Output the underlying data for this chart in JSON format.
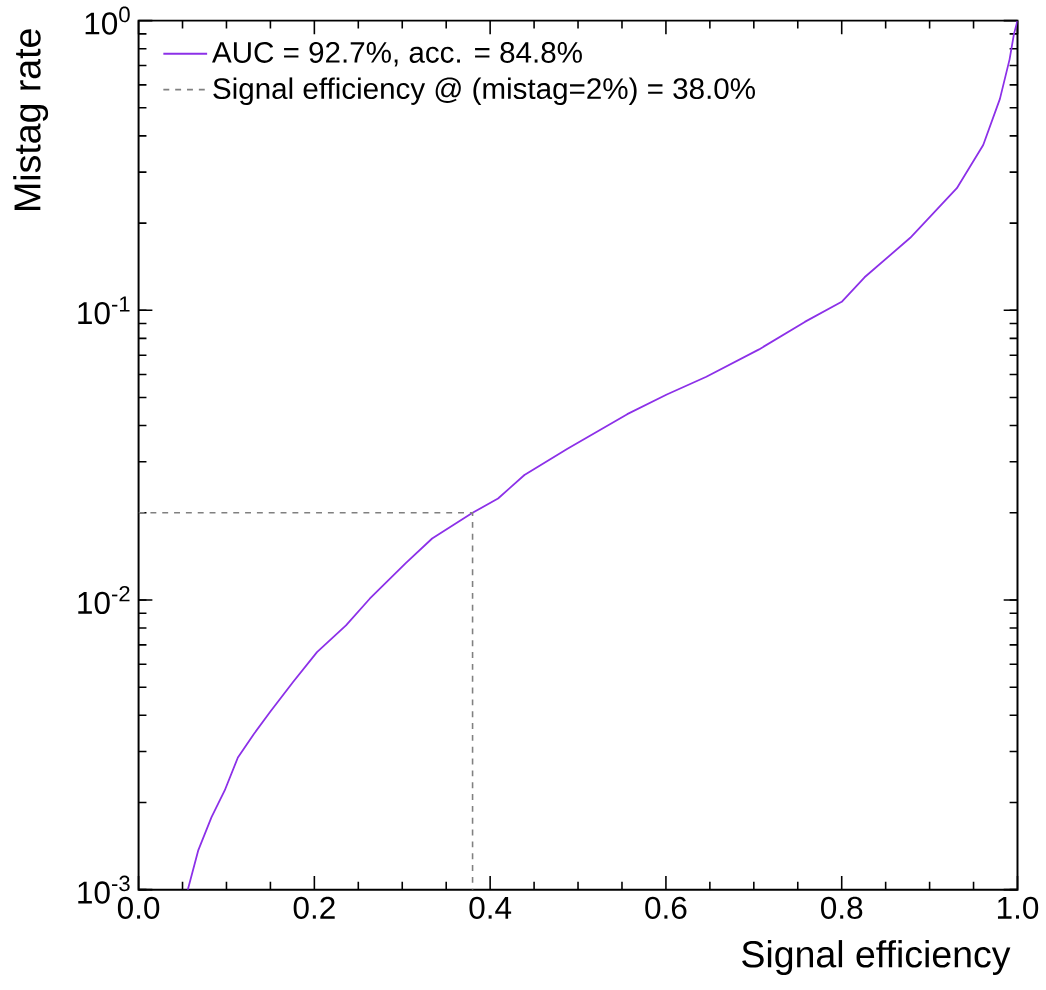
{
  "chart_data": {
    "type": "line",
    "xlabel": "Signal efficiency",
    "ylabel": "Mistag rate",
    "log": "y",
    "legend": "top left",
    "xlim": [
      0,
      1
    ],
    "ylim": [
      0.001,
      1
    ],
    "xticks": [
      {
        "value": 0,
        "label": "0.0"
      },
      {
        "value": 0.2,
        "label": "0.2"
      },
      {
        "value": 0.4,
        "label": "0.4"
      },
      {
        "value": 0.6,
        "label": "0.6"
      },
      {
        "value": 0.8,
        "label": "0.8"
      },
      {
        "value": 1,
        "label": "1.0"
      }
    ],
    "yticks": [
      {
        "value": 0.001,
        "label": "10$^{-3}$"
      },
      {
        "value": 0.01,
        "label": "10$^{-2}$"
      },
      {
        "value": 0.1,
        "label": "10$^{-1}$"
      },
      {
        "value": 1,
        "label": "10$^{0}$"
      }
    ],
    "series": [
      {
        "name": "AUC = 92.7%, acc. = 84.8%",
        "color": "#8c30e8",
        "line_style": "solid",
        "x": [
          0.056,
          0.068,
          0.083,
          0.098,
          0.113,
          0.131,
          0.15,
          0.176,
          0.203,
          0.236,
          0.263,
          0.278,
          0.304,
          0.334,
          0.38,
          0.409,
          0.439,
          0.488,
          0.556,
          0.601,
          0.646,
          0.706,
          0.758,
          0.8,
          0.826,
          0.878,
          0.931,
          0.961,
          0.98,
          0.991,
          0.996,
          1.0
        ],
        "values": [
          0.001,
          0.00137,
          0.00178,
          0.0022,
          0.00286,
          0.00344,
          0.00412,
          0.00522,
          0.00661,
          0.00817,
          0.0101,
          0.0112,
          0.0134,
          0.0163,
          0.02,
          0.0224,
          0.027,
          0.0333,
          0.0438,
          0.0512,
          0.059,
          0.0733,
          0.0912,
          0.107,
          0.13,
          0.178,
          0.264,
          0.372,
          0.537,
          0.735,
          0.9,
          1.0
        ]
      },
      {
        "name": "Signal efficiency @ (mistag=2%) = 38.0%",
        "color": "#808080",
        "line_style": "dashed",
        "x": [
          0,
          0.38,
          0.38
        ],
        "values": [
          0.02,
          0.02,
          0.001
        ]
      }
    ]
  }
}
